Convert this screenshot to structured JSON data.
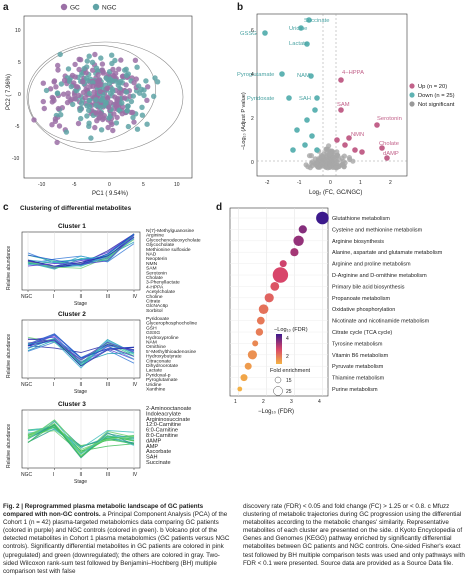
{
  "panels": {
    "a": {
      "letter": "a",
      "legend": [
        {
          "label": "GC",
          "color": "#9b6fa6"
        },
        {
          "label": "NGC",
          "color": "#5fa3a6"
        }
      ],
      "xlabel": "PC1 ( 9.54%)",
      "ylabel": "PC2 ( 7.96%)",
      "x_ticks": [
        "-10",
        "-5",
        "0",
        "5",
        "10"
      ],
      "y_ticks": [
        "-10",
        "-5",
        "0",
        "5",
        "10"
      ]
    },
    "b": {
      "letter": "b",
      "xlabel": "Log₂ (FC, GC/NGC)",
      "ylabel": "−Log₁₀ (Adjust P value)",
      "x_ticks": [
        "-2",
        "-1",
        "0",
        "1",
        "2"
      ],
      "y_ticks": [
        "0",
        "2",
        "4",
        "6"
      ],
      "legend": [
        {
          "label": "Up (n = 20)",
          "color": "#c2628a"
        },
        {
          "label": "Down (n = 25)",
          "color": "#5fb3b3"
        },
        {
          "label": "Not significant",
          "color": "#999999"
        }
      ],
      "labels_down": [
        "Succinate",
        "Uridine",
        "GSSG",
        "Lactate",
        "Pyroglutamate",
        "NAM",
        "Pyridoxate",
        "SAH"
      ],
      "labels_up": [
        "4−HPPA",
        "SAM",
        "Serotonin",
        "NMN",
        "Cholate",
        "dAMP"
      ]
    },
    "c": {
      "letter": "c",
      "title": "Clustering of differential metabolites",
      "ylabel": "Relative abundance",
      "xlabel": "Stage",
      "x_ticks": [
        "NGC",
        "I",
        "II",
        "III",
        "IV"
      ],
      "clusters": [
        {
          "name": "Cluster 1",
          "metabolites": [
            "N(7)-Methylguanosine",
            "Arginine",
            "Glycochenodeoxycholate",
            "Glycocholate",
            "Methionine sulfoxide",
            "NAD",
            "Neopterin",
            "NMN",
            "SAM",
            "Serotonin",
            "Cholate",
            "3-Phenyllactate",
            "4-HPPA",
            "Acetylcholate",
            "Choline",
            "Citrate",
            "GlcNAc6p",
            "Sorbitol"
          ]
        },
        {
          "name": "Cluster 2",
          "metabolites": [
            "Pyridoxate",
            "Glycerophosphocholine",
            "GSH",
            "GSSG",
            "Hydroxyproline",
            "NAM",
            "Ornithine",
            "5'-Methylthioadenosine",
            "Hydroxybutyrate",
            "Citraconate",
            "Dihydroorotate",
            "Lactate",
            "Pyridoxal-p",
            "Pyroglutamate",
            "Uridine",
            "Xanthine"
          ]
        },
        {
          "name": "Cluster 3",
          "metabolites": [
            "2-Aminooctanoate",
            "Indoleacrylate",
            "Argininosuccinate",
            "12:0-Carnitine",
            "6:0-Carnitine",
            "8:0-Carnitine",
            "dAMP",
            "AMP",
            "Ascorbate",
            "SAH",
            "Succinate"
          ]
        }
      ]
    },
    "d": {
      "letter": "d",
      "xlabel": "−Log₁₀ (FDR)",
      "x_ticks": [
        "1",
        "2",
        "3",
        "4"
      ],
      "color_legend_title": "−Log₁₀ (FDR)",
      "color_ticks": [
        "4",
        "2"
      ],
      "size_legend_title": "Fold enrichment",
      "size_ticks": [
        "15",
        "25"
      ],
      "pathways": [
        {
          "name": "Glutathione metabolism",
          "fdr": 4.0,
          "fold": 22
        },
        {
          "name": "Cysteine and methionine metabolism",
          "fdr": 3.3,
          "fold": 12
        },
        {
          "name": "Arginine biosynthesis",
          "fdr": 3.15,
          "fold": 17
        },
        {
          "name": "Alanine, aspartate and glutamate metabolism",
          "fdr": 3.0,
          "fold": 12
        },
        {
          "name": "Arginine and proline metabolism",
          "fdr": 2.6,
          "fold": 9
        },
        {
          "name": "D-Arginine and D-ornithine metabolism",
          "fdr": 2.5,
          "fold": 28
        },
        {
          "name": "Primary bile acid biosynthesis",
          "fdr": 2.3,
          "fold": 13
        },
        {
          "name": "Propanoate metabolism",
          "fdr": 2.1,
          "fold": 14
        },
        {
          "name": "Oxidative phosphorylation",
          "fdr": 1.9,
          "fold": 15
        },
        {
          "name": "Nicotinate and nicotinamide metabolism",
          "fdr": 1.8,
          "fold": 11
        },
        {
          "name": "Citrate cycle (TCA cycle)",
          "fdr": 1.75,
          "fold": 10
        },
        {
          "name": "Tyrosine metabolism",
          "fdr": 1.6,
          "fold": 7
        },
        {
          "name": "Vitamin B6 metabolism",
          "fdr": 1.5,
          "fold": 14
        },
        {
          "name": "Pyruvate metabolism",
          "fdr": 1.35,
          "fold": 9
        },
        {
          "name": "Thiamine metabolism",
          "fdr": 1.2,
          "fold": 9
        },
        {
          "name": "Purine metabolism",
          "fdr": 1.05,
          "fold": 4
        }
      ]
    }
  },
  "caption": {
    "title": "Fig. 2 | Reprogrammed plasma metabolic landscape of GC patients compared with non-GC controls.",
    "left": "a Principal Component Analysis (PCA) of the Cohort 1 (n = 42) plasma-targeted metabolomics data comparing GC patients (colored in purple) and NGC controls (colored in green). b Volcano plot of the detected metabolites in Cohort 1 plasma metabolomics (GC patients versus NGC controls). Significantly differential metabolites in GC patients are colored in pink (upregulated) and green (downregulated); the others are colored in gray. Two-sided Wilcoxon rank-sum test followed by Benjamini–Hochberg (BH) multiple comparison test with false",
    "right": "discovery rate (FDR) < 0.05 and fold change (FC) > 1.25 or < 0.8. c Mfuzz clustering of metabolic trajectories during GC progression using the differential metabolites according to the metabolic changes' similarity. Representative metabolites of each cluster are presented on the side. d Kyoto Encyclopedia of Genes and Genomes (KEGG) pathway enriched by significantly differential metabolites between GC patients and NGC controls. One-sided Fisher's exact test followed by BH multiple comparison tests was used and only pathways with FDR < 0.1 were presented. Source data are provided as a Source Data file."
  }
}
